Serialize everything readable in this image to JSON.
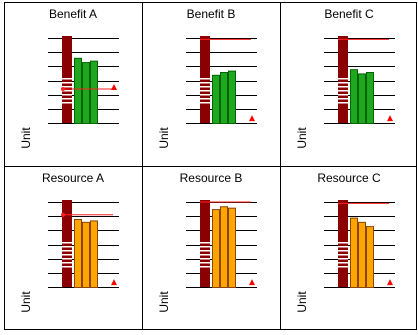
{
  "colors": {
    "border": "#000000",
    "gridline": "#000000",
    "resource_column": "#8b0000",
    "resource_stripe": "#ffffff",
    "reference_line": "#ff2020",
    "marker": "#ff0000",
    "benefit_bar": "#1fa81f",
    "benefit_bar_edge": "#006400",
    "resource_bar": "#ffa500",
    "resource_bar_edge": "#8b4500"
  },
  "chart_data": [
    {
      "type": "bar",
      "title": "Benefit A",
      "ylabel": "Unit",
      "ylim": [
        0,
        6
      ],
      "values": [
        4.6,
        4.3,
        4.4
      ],
      "reference_value": 2.4,
      "reference_marker": true,
      "marker_value": 2.4,
      "bar_color_key": "benefit_bar"
    },
    {
      "type": "bar",
      "title": "Benefit B",
      "ylabel": "Unit",
      "ylim": [
        0,
        6
      ],
      "values": [
        3.4,
        3.6,
        3.7
      ],
      "reference_value": 5.9,
      "reference_marker": false,
      "marker_value": 0.2,
      "bar_color_key": "benefit_bar"
    },
    {
      "type": "bar",
      "title": "Benefit C",
      "ylabel": "Unit",
      "ylim": [
        0,
        6
      ],
      "values": [
        3.8,
        3.5,
        3.6
      ],
      "reference_value": 5.9,
      "reference_marker": false,
      "marker_value": 0.2,
      "bar_color_key": "benefit_bar"
    },
    {
      "type": "bar",
      "title": "Resource A",
      "ylabel": "Unit",
      "ylim": [
        0,
        6
      ],
      "values": [
        4.8,
        4.6,
        4.7
      ],
      "reference_value": 5.1,
      "reference_marker": true,
      "marker_value": 0.2,
      "bar_color_key": "resource_bar"
    },
    {
      "type": "bar",
      "title": "Resource B",
      "ylabel": "Unit",
      "ylim": [
        0,
        6
      ],
      "values": [
        5.5,
        5.7,
        5.6
      ],
      "reference_value": 6.0,
      "reference_marker": false,
      "marker_value": 0.2,
      "bar_color_key": "resource_bar"
    },
    {
      "type": "bar",
      "title": "Resource C",
      "ylabel": "Unit",
      "ylim": [
        0,
        6
      ],
      "values": [
        4.9,
        4.6,
        4.3
      ],
      "reference_value": 5.9,
      "reference_marker": false,
      "marker_value": 0.2,
      "bar_color_key": "resource_bar"
    }
  ]
}
